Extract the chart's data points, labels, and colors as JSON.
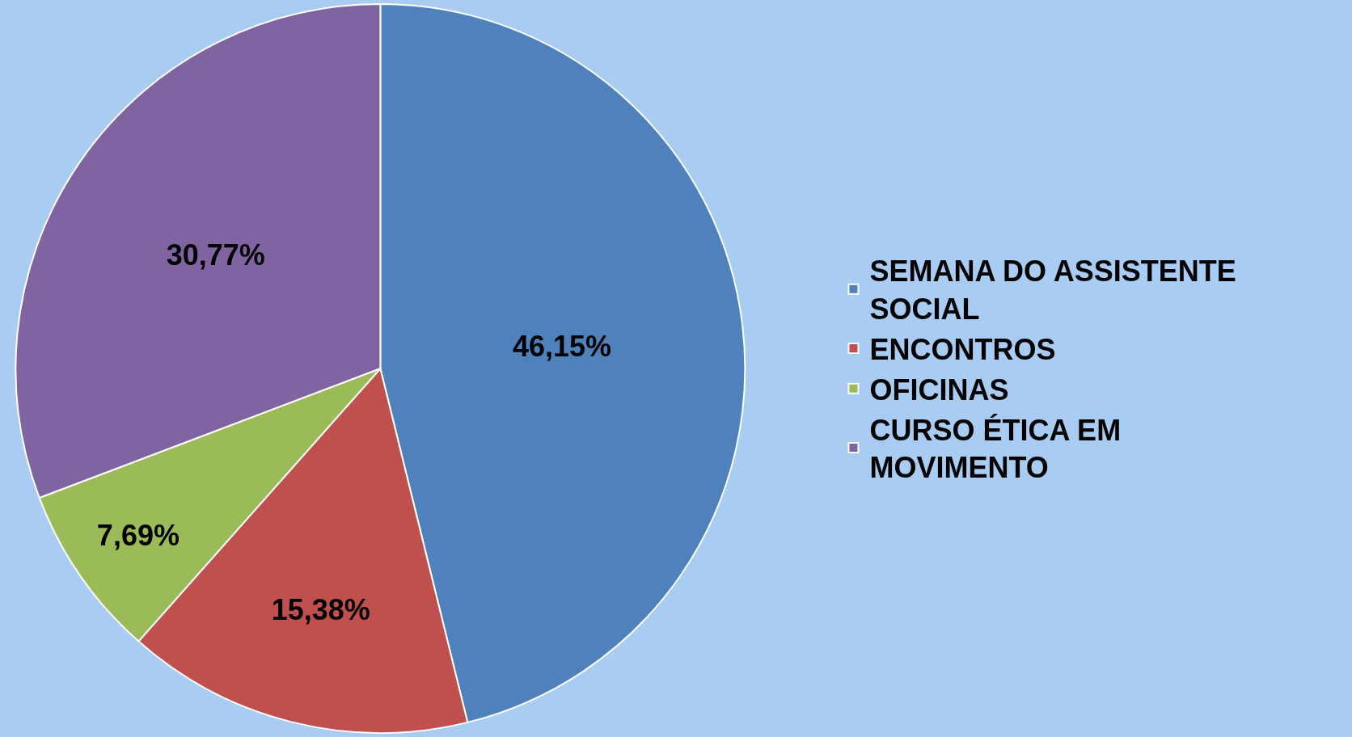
{
  "chart_data": {
    "type": "pie",
    "categories": [
      "SEMANA DO ASSISTENTE SOCIAL",
      "ENCONTROS",
      "OFICINAS",
      "CURSO ÉTICA EM MOVIMENTO"
    ],
    "values": [
      46.15,
      15.38,
      7.69,
      30.77
    ],
    "value_labels": [
      "46,15%",
      "15,38%",
      "7,69%",
      "30,77%"
    ],
    "colors": [
      "#4f81bd",
      "#c0504d",
      "#9bbb59",
      "#8064a2"
    ],
    "legend": "right"
  }
}
